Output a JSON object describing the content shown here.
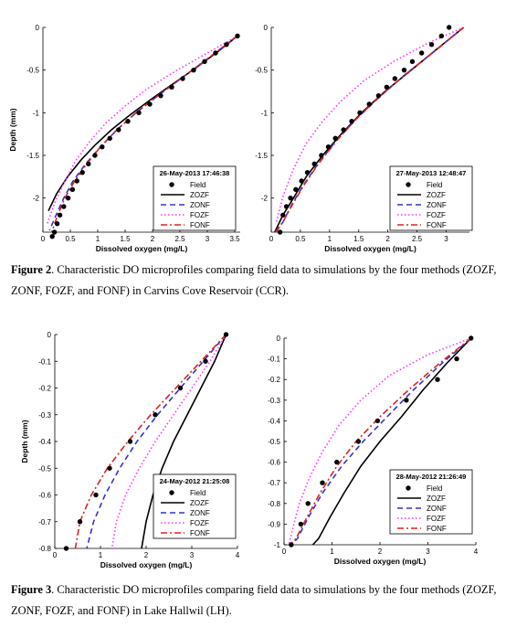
{
  "figure2": {
    "label": "Figure 2",
    "caption": ". Characteristic DO microprofiles comparing field data to simulations by the four methods (ZOZF, ZONF, FOZF, and FONF) in Carvins Cove Reservoir (CCR)."
  },
  "figure3": {
    "label": "Figure 3",
    "caption": ". Characteristic DO microprofiles comparing field data to simulations by the four methods (ZOZF, ZONF, FOZF, and FONF) in Lake Hallwil (LH)."
  },
  "series_styles": [
    {
      "name": "Field",
      "color": "#000000",
      "kind": "marker"
    },
    {
      "name": "ZOZF",
      "color": "#000000",
      "kind": "solid"
    },
    {
      "name": "ZONF",
      "color": "#3333cc",
      "kind": "dashed"
    },
    {
      "name": "FOZF",
      "color": "#ff33ff",
      "kind": "dotted"
    },
    {
      "name": "FONF",
      "color": "#e02020",
      "kind": "dashdot"
    }
  ],
  "chart_data": [
    {
      "type": "line",
      "panel": "Figure 2 left",
      "annotation": "26-May-2013 17:46:38",
      "xlabel": "Dissolved oxygen (mg/L)",
      "ylabel": "Depth (mm)",
      "xlim": [
        0,
        3.6
      ],
      "ylim": [
        -2.4,
        0
      ],
      "xticks": [
        "0",
        "0.5",
        "1",
        "1.5",
        "2",
        "2.5",
        "3",
        "3.5"
      ],
      "xtick_values": [
        0,
        0.5,
        1,
        1.5,
        2,
        2.5,
        3,
        3.5
      ],
      "yticks": [
        "0",
        "-0.5",
        "-1",
        "-1.5",
        "-2"
      ],
      "ytick_values": [
        0,
        -0.5,
        -1,
        -1.5,
        -2
      ],
      "legend": [
        "Field",
        "ZOZF",
        "ZONF",
        "FOZF",
        "FONF"
      ],
      "series": [
        {
          "name": "Field",
          "x": [
            3.55,
            3.35,
            3.15,
            2.95,
            2.75,
            2.55,
            2.35,
            2.15,
            1.95,
            1.75,
            1.55,
            1.38,
            1.22,
            1.08,
            0.95,
            0.83,
            0.72,
            0.62,
            0.54,
            0.46,
            0.38,
            0.31,
            0.26,
            0.21,
            0.17
          ],
          "y": [
            -0.1,
            -0.2,
            -0.3,
            -0.4,
            -0.5,
            -0.6,
            -0.7,
            -0.8,
            -0.9,
            -1.0,
            -1.1,
            -1.2,
            -1.3,
            -1.4,
            -1.5,
            -1.6,
            -1.7,
            -1.8,
            -1.9,
            -2.0,
            -2.1,
            -2.2,
            -2.3,
            -2.4,
            -2.45
          ]
        },
        {
          "name": "ZOZF",
          "x": [
            3.55,
            3.2,
            2.8,
            2.4,
            2.0,
            1.6,
            1.25,
            0.95,
            0.7,
            0.45,
            0.25,
            0.1
          ],
          "y": [
            -0.1,
            -0.28,
            -0.47,
            -0.65,
            -0.83,
            -1.02,
            -1.2,
            -1.38,
            -1.55,
            -1.75,
            -1.95,
            -2.15
          ]
        },
        {
          "name": "ZONF",
          "x": [
            3.55,
            3.1,
            2.6,
            2.1,
            1.7,
            1.35,
            1.05,
            0.78,
            0.55,
            0.38,
            0.24,
            0.12
          ],
          "y": [
            -0.1,
            -0.32,
            -0.56,
            -0.8,
            -1.0,
            -1.2,
            -1.4,
            -1.6,
            -1.8,
            -2.0,
            -2.2,
            -2.38
          ]
        },
        {
          "name": "FOZF",
          "x": [
            3.55,
            3.0,
            2.4,
            1.9,
            1.5,
            1.15,
            0.85,
            0.6,
            0.4,
            0.22,
            0.08
          ],
          "y": [
            -0.1,
            -0.3,
            -0.52,
            -0.72,
            -0.92,
            -1.12,
            -1.34,
            -1.56,
            -1.8,
            -2.05,
            -2.3
          ]
        },
        {
          "name": "FONF",
          "x": [
            3.55,
            3.08,
            2.58,
            2.1,
            1.7,
            1.35,
            1.05,
            0.8,
            0.58,
            0.4,
            0.27,
            0.16
          ],
          "y": [
            -0.1,
            -0.33,
            -0.57,
            -0.8,
            -1.0,
            -1.2,
            -1.4,
            -1.6,
            -1.8,
            -2.0,
            -2.2,
            -2.4
          ]
        }
      ]
    },
    {
      "type": "line",
      "panel": "Figure 2 right",
      "annotation": "27-May-2013 12:48:47",
      "xlabel": "Dissolved oxygen (mg/L)",
      "ylabel": "",
      "xlim": [
        0,
        3.4
      ],
      "ylim": [
        -2.4,
        0
      ],
      "xticks": [
        "0",
        "0.5",
        "1",
        "1.5",
        "2",
        "2.5",
        "3"
      ],
      "xtick_values": [
        0,
        0.5,
        1,
        1.5,
        2,
        2.5,
        3
      ],
      "yticks": [
        "0",
        "-0.5",
        "-1",
        "-1.5",
        "-2"
      ],
      "ytick_values": [
        0,
        -0.5,
        -1,
        -1.5,
        -2
      ],
      "legend": [
        "Field",
        "ZOZF",
        "ZONF",
        "FOZF",
        "FONF"
      ],
      "series": [
        {
          "name": "Field",
          "x": [
            3.05,
            2.92,
            2.75,
            2.58,
            2.42,
            2.28,
            2.12,
            1.98,
            1.84,
            1.68,
            1.52,
            1.38,
            1.24,
            1.1,
            0.98,
            0.86,
            0.74,
            0.62,
            0.52,
            0.42,
            0.33,
            0.26,
            0.2,
            0.15
          ],
          "y": [
            0,
            -0.1,
            -0.2,
            -0.3,
            -0.4,
            -0.5,
            -0.6,
            -0.7,
            -0.8,
            -0.9,
            -1.0,
            -1.1,
            -1.2,
            -1.3,
            -1.4,
            -1.5,
            -1.6,
            -1.7,
            -1.8,
            -1.9,
            -2.0,
            -2.1,
            -2.2,
            -2.4
          ]
        },
        {
          "name": "ZOZF",
          "x": [
            3.3,
            2.85,
            2.4,
            1.95,
            1.55,
            1.2,
            0.88,
            0.6,
            0.38,
            0.2,
            0.06
          ],
          "y": [
            0,
            -0.25,
            -0.5,
            -0.75,
            -1.0,
            -1.25,
            -1.5,
            -1.75,
            -2.0,
            -2.2,
            -2.4
          ]
        },
        {
          "name": "ZONF",
          "x": [
            3.3,
            2.8,
            2.3,
            1.85,
            1.45,
            1.1,
            0.8,
            0.55,
            0.35,
            0.2,
            0.08
          ],
          "y": [
            0,
            -0.28,
            -0.55,
            -0.82,
            -1.08,
            -1.34,
            -1.6,
            -1.85,
            -2.08,
            -2.28,
            -2.4
          ]
        },
        {
          "name": "FOZF",
          "x": [
            3.3,
            2.7,
            2.1,
            1.6,
            1.2,
            0.88,
            0.6,
            0.38,
            0.2,
            0.08
          ],
          "y": [
            0,
            -0.18,
            -0.4,
            -0.62,
            -0.86,
            -1.1,
            -1.36,
            -1.66,
            -1.98,
            -2.3
          ]
        },
        {
          "name": "FONF",
          "x": [
            3.3,
            2.82,
            2.32,
            1.86,
            1.46,
            1.12,
            0.82,
            0.56,
            0.36,
            0.2,
            0.07
          ],
          "y": [
            0,
            -0.27,
            -0.54,
            -0.81,
            -1.07,
            -1.33,
            -1.59,
            -1.85,
            -2.08,
            -2.28,
            -2.4
          ]
        }
      ]
    },
    {
      "type": "line",
      "panel": "Figure 3 left",
      "annotation": "24-May-2012 21:25:08",
      "xlabel": "Dissolved oxygen (mg/L)",
      "ylabel": "Depth (mm)",
      "xlim": [
        0,
        4
      ],
      "ylim": [
        -0.8,
        0
      ],
      "xticks": [
        "0",
        "1",
        "2",
        "3",
        "4"
      ],
      "xtick_values": [
        0,
        1,
        2,
        3,
        4
      ],
      "yticks": [
        "0",
        "-0.1",
        "-0.2",
        "-0.3",
        "-0.4",
        "-0.5",
        "-0.6",
        "-0.7",
        "-0.8"
      ],
      "ytick_values": [
        0,
        -0.1,
        -0.2,
        -0.3,
        -0.4,
        -0.5,
        -0.6,
        -0.7,
        -0.8
      ],
      "legend": [
        "Field",
        "ZOZF",
        "ZONF",
        "FOZF",
        "FONF"
      ],
      "series": [
        {
          "name": "Field",
          "x": [
            3.75,
            3.3,
            2.75,
            2.2,
            1.65,
            1.2,
            0.9,
            0.55,
            0.25
          ],
          "y": [
            0,
            -0.1,
            -0.2,
            -0.3,
            -0.4,
            -0.5,
            -0.6,
            -0.7,
            -0.8
          ]
        },
        {
          "name": "ZOZF",
          "x": [
            3.75,
            3.5,
            3.2,
            2.9,
            2.6,
            2.35,
            2.15,
            2.0,
            1.9
          ],
          "y": [
            0,
            -0.1,
            -0.2,
            -0.3,
            -0.4,
            -0.5,
            -0.6,
            -0.7,
            -0.8
          ]
        },
        {
          "name": "ZONF",
          "x": [
            3.75,
            3.25,
            2.75,
            2.25,
            1.8,
            1.42,
            1.1,
            0.85,
            0.7
          ],
          "y": [
            0,
            -0.1,
            -0.2,
            -0.3,
            -0.4,
            -0.5,
            -0.6,
            -0.7,
            -0.8
          ]
        },
        {
          "name": "FOZF",
          "x": [
            3.75,
            3.4,
            3.0,
            2.6,
            2.2,
            1.85,
            1.55,
            1.35,
            1.25
          ],
          "y": [
            0,
            -0.1,
            -0.2,
            -0.3,
            -0.4,
            -0.5,
            -0.6,
            -0.7,
            -0.8
          ]
        },
        {
          "name": "FONF",
          "x": [
            3.75,
            3.2,
            2.65,
            2.1,
            1.6,
            1.15,
            0.8,
            0.55,
            0.45
          ],
          "y": [
            0,
            -0.1,
            -0.2,
            -0.3,
            -0.4,
            -0.5,
            -0.6,
            -0.7,
            -0.8
          ]
        }
      ]
    },
    {
      "type": "line",
      "panel": "Figure 3 right",
      "annotation": "28-May-2012 21:26:49",
      "xlabel": "Dissolved oxygen (mg/L)",
      "ylabel": "",
      "xlim": [
        0,
        4
      ],
      "ylim": [
        -1,
        0
      ],
      "xticks": [
        "0",
        "1",
        "2",
        "3",
        "4"
      ],
      "xtick_values": [
        0,
        1,
        2,
        3,
        4
      ],
      "yticks": [
        "0",
        "-0.1",
        "-0.2",
        "-0.3",
        "-0.4",
        "-0.5",
        "-0.6",
        "-0.7",
        "-0.8",
        "-0.9",
        "-1"
      ],
      "ytick_values": [
        0,
        -0.1,
        -0.2,
        -0.3,
        -0.4,
        -0.5,
        -0.6,
        -0.7,
        -0.8,
        -0.9,
        -1
      ],
      "legend": [
        "Field",
        "ZOZF",
        "ZONF",
        "FOZF",
        "FONF"
      ],
      "series": [
        {
          "name": "Field",
          "x": [
            3.9,
            3.6,
            3.2,
            2.55,
            1.95,
            1.55,
            1.1,
            0.8,
            0.5,
            0.35,
            0.15
          ],
          "y": [
            0,
            -0.1,
            -0.2,
            -0.3,
            -0.4,
            -0.5,
            -0.6,
            -0.7,
            -0.8,
            -0.9,
            -1.0
          ]
        },
        {
          "name": "ZOZF",
          "x": [
            3.9,
            3.4,
            2.9,
            2.45,
            2.0,
            1.6,
            1.25,
            0.95,
            0.72,
            0.6
          ],
          "y": [
            0,
            -0.12,
            -0.25,
            -0.38,
            -0.5,
            -0.62,
            -0.75,
            -0.87,
            -0.97,
            -1.0
          ]
        },
        {
          "name": "ZONF",
          "x": [
            3.9,
            3.3,
            2.7,
            2.15,
            1.65,
            1.2,
            0.8,
            0.5,
            0.28,
            0.15
          ],
          "y": [
            0,
            -0.12,
            -0.25,
            -0.38,
            -0.5,
            -0.62,
            -0.75,
            -0.87,
            -0.97,
            -1.0
          ]
        },
        {
          "name": "FOZF",
          "x": [
            3.9,
            3.0,
            2.2,
            1.6,
            1.15,
            0.8,
            0.52,
            0.32,
            0.18,
            0.1
          ],
          "y": [
            0,
            -0.08,
            -0.18,
            -0.3,
            -0.42,
            -0.55,
            -0.68,
            -0.8,
            -0.92,
            -1.0
          ]
        },
        {
          "name": "FONF",
          "x": [
            3.9,
            3.25,
            2.6,
            2.0,
            1.5,
            1.1,
            0.75,
            0.47,
            0.25,
            0.12
          ],
          "y": [
            0,
            -0.12,
            -0.25,
            -0.38,
            -0.5,
            -0.62,
            -0.75,
            -0.87,
            -0.97,
            -1.0
          ]
        }
      ]
    }
  ]
}
